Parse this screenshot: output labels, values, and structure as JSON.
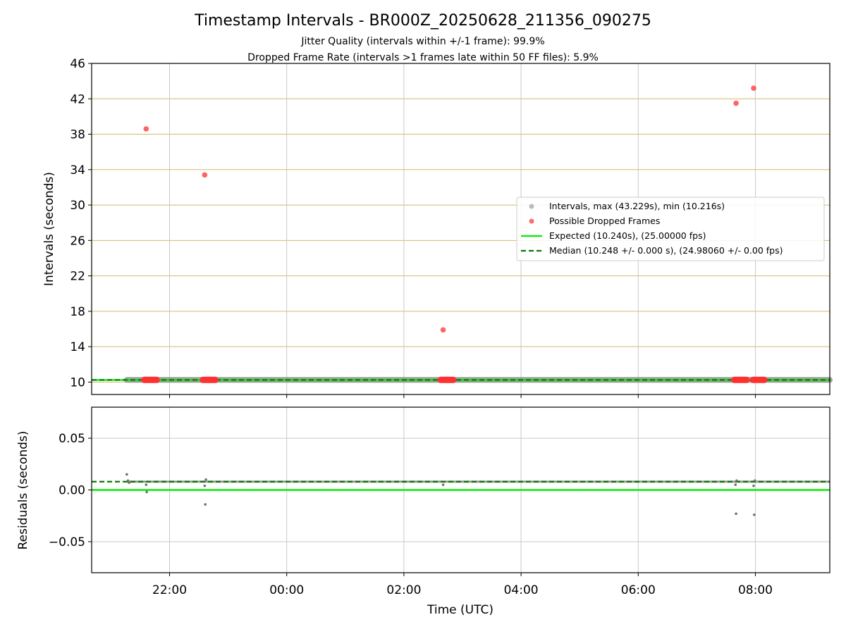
{
  "chart_data": [
    {
      "type": "scatter",
      "title": "Timestamp Intervals - BR000Z_20250628_211356_090275",
      "subtitle_lines": [
        "Jitter Quality (intervals within +/-1 frame): 99.9%",
        "Dropped Frame Rate (intervals >1 frames late within 50 FF files): 5.9%"
      ],
      "xlabel": "",
      "ylabel": "Intervals (seconds)",
      "xlim_hours": [
        20.67,
        33.27
      ],
      "ylim": [
        8.6,
        46
      ],
      "yticks": [
        10,
        14,
        18,
        22,
        26,
        30,
        34,
        38,
        42,
        46
      ],
      "ytick_labels": [
        "10",
        "14",
        "18",
        "22",
        "26",
        "30",
        "34",
        "38",
        "42",
        "46"
      ],
      "xgrid_hours": [
        22,
        24,
        26,
        28,
        30,
        32
      ],
      "hgrid_color": "#d4b96a",
      "vgrid_color": "#c8c8c8",
      "legend_position": "center-right",
      "series": [
        {
          "name": "Intervals, max (43.229s), min (10.216s)",
          "kind": "scatter-band",
          "color": "#909090",
          "x_range_hours": [
            21.27,
            33.27
          ],
          "y_value": 10.248
        },
        {
          "name": "Possible Dropped Frames",
          "kind": "scatter",
          "color": "#ff3030",
          "outliers": [
            {
              "x": 21.6,
              "y": 38.6
            },
            {
              "x": 22.6,
              "y": 33.4
            },
            {
              "x": 26.67,
              "y": 15.9
            },
            {
              "x": 31.67,
              "y": 41.5
            },
            {
              "x": 31.97,
              "y": 43.2
            }
          ],
          "clusters_hours": [
            [
              21.57,
              21.78
            ],
            [
              22.57,
              22.78
            ],
            [
              26.63,
              26.84
            ],
            [
              31.64,
              31.85
            ],
            [
              31.96,
              32.15
            ]
          ],
          "cluster_y": 10.25
        },
        {
          "name": "Expected (10.240s), (25.00000 fps)",
          "kind": "hline",
          "style": "solid",
          "color": "#00ee00",
          "y": 10.24
        },
        {
          "name": "Median (10.248 +/- 0.000 s), (24.98060 +/- 0.00 fps)",
          "kind": "hline",
          "style": "dashed",
          "color": "#007a00",
          "y": 10.248
        }
      ]
    },
    {
      "type": "scatter",
      "xlabel": "Time (UTC)",
      "ylabel": "Residuals (seconds)",
      "xlim_hours": [
        20.67,
        33.27
      ],
      "ylim": [
        -0.08,
        0.08
      ],
      "yticks": [
        0.05,
        0.0,
        -0.05
      ],
      "ytick_labels": [
        "0.05",
        "0.00",
        "−0.05"
      ],
      "xticks_hours": [
        22,
        24,
        26,
        28,
        30,
        32
      ],
      "xtick_labels": [
        "22:00",
        "00:00",
        "02:00",
        "04:00",
        "06:00",
        "08:00"
      ],
      "grid_color": "#c8c8c8",
      "series": [
        {
          "kind": "hline",
          "style": "solid",
          "color": "#00ee00",
          "y": 0.0
        },
        {
          "kind": "hline",
          "style": "dashed",
          "color": "#007a00",
          "y": 0.008
        },
        {
          "kind": "scatter",
          "color": "#707070",
          "band_y": 0.008,
          "band_x_range_hours": [
            21.27,
            33.27
          ],
          "points": [
            {
              "x": 21.27,
              "y": 0.015
            },
            {
              "x": 21.29,
              "y": 0.009
            },
            {
              "x": 21.31,
              "y": 0.007
            },
            {
              "x": 21.6,
              "y": 0.005
            },
            {
              "x": 21.61,
              "y": -0.002
            },
            {
              "x": 22.6,
              "y": 0.004
            },
            {
              "x": 22.61,
              "y": -0.014
            },
            {
              "x": 22.62,
              "y": 0.01
            },
            {
              "x": 26.67,
              "y": 0.005
            },
            {
              "x": 31.66,
              "y": 0.005
            },
            {
              "x": 31.67,
              "y": -0.023
            },
            {
              "x": 31.68,
              "y": 0.009
            },
            {
              "x": 31.97,
              "y": 0.004
            },
            {
              "x": 31.98,
              "y": -0.024
            },
            {
              "x": 31.99,
              "y": 0.009
            }
          ]
        }
      ]
    }
  ]
}
